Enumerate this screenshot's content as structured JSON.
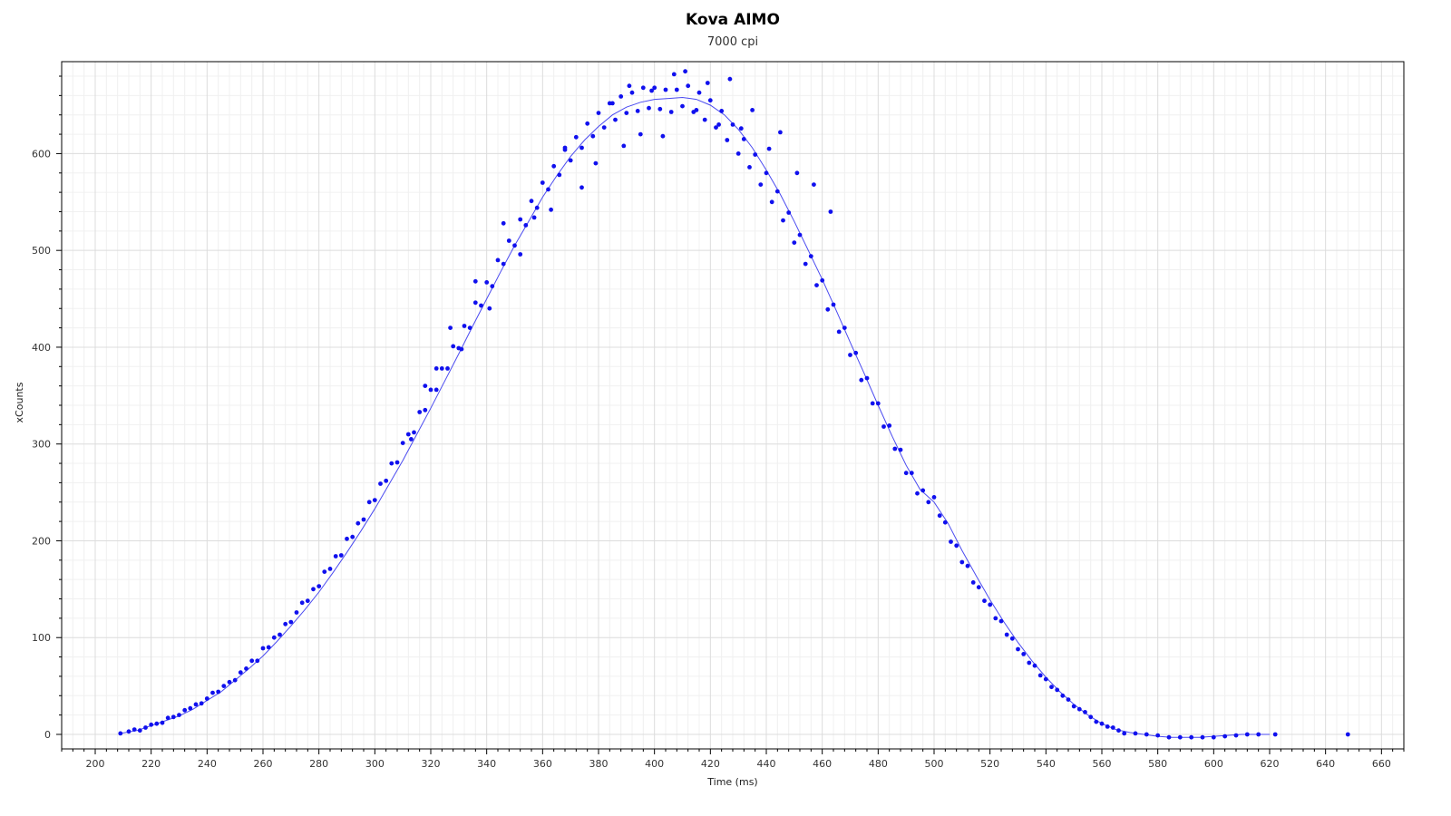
{
  "chart_data": {
    "type": "scatter",
    "title": "Kova AIMO",
    "subtitle": "7000 cpi",
    "xlabel": "Time (ms)",
    "ylabel": "xCounts",
    "xlim": [
      188,
      668
    ],
    "ylim": [
      -15,
      695
    ],
    "xticks": [
      200,
      220,
      240,
      260,
      280,
      300,
      320,
      340,
      360,
      380,
      400,
      420,
      440,
      460,
      480,
      500,
      520,
      540,
      560,
      580,
      600,
      620,
      640,
      660
    ],
    "yticks": [
      0,
      100,
      200,
      300,
      400,
      500,
      600
    ],
    "grid": true,
    "legend": "none",
    "colors": {
      "points": "#1010ee",
      "line": "#4a4af0"
    },
    "series": [
      {
        "type": "scatter",
        "x": [
          209,
          212,
          214,
          216,
          218,
          220,
          222,
          224,
          226,
          228,
          230,
          232,
          234,
          236,
          238,
          240,
          242,
          244,
          246,
          248,
          250,
          252,
          254,
          256,
          258,
          260,
          262,
          264,
          266,
          268,
          270,
          272,
          274,
          276,
          278,
          280,
          282,
          284,
          286,
          288,
          290,
          292,
          294,
          296,
          298,
          300,
          302,
          304,
          306,
          308,
          310,
          312,
          314,
          316,
          318,
          320,
          322,
          324,
          326,
          328,
          330,
          332,
          334,
          336,
          338,
          340,
          342,
          344,
          346,
          348,
          350,
          352,
          354,
          356,
          358,
          360,
          362,
          364,
          366,
          368,
          370,
          372,
          374,
          376,
          378,
          380,
          382,
          384,
          386,
          388,
          390,
          392,
          394,
          396,
          398,
          400,
          402,
          404,
          406,
          408,
          410,
          412,
          414,
          416,
          418,
          420,
          422,
          424,
          426,
          428,
          430,
          432,
          434,
          436,
          438,
          440,
          442,
          444,
          446,
          448,
          450,
          452,
          454,
          456,
          458,
          460,
          462,
          464,
          466,
          468,
          470,
          472,
          474,
          476,
          478,
          480,
          482,
          484,
          486,
          488,
          490,
          492,
          494,
          496,
          498,
          500,
          502,
          504,
          506,
          508,
          510,
          512,
          514,
          516,
          518,
          520,
          522,
          524,
          526,
          528,
          530,
          532,
          534,
          536,
          538,
          540,
          542,
          544,
          546,
          548,
          550,
          552,
          554,
          556,
          558,
          560,
          562,
          564,
          566,
          568,
          572,
          576,
          580,
          584,
          588,
          592,
          596,
          600,
          604,
          608,
          612,
          616,
          622,
          648,
          313,
          318,
          322,
          327,
          331,
          336,
          341,
          346,
          352,
          357,
          363,
          368,
          374,
          379,
          385,
          389,
          391,
          395,
          399,
          403,
          407,
          411,
          415,
          419,
          423,
          427,
          431,
          435,
          441,
          445,
          451,
          457,
          463
        ],
        "y": [
          1,
          3,
          4,
          5,
          7,
          9,
          11,
          13,
          16,
          18,
          21,
          24,
          27,
          30,
          33,
          37,
          41,
          45,
          49,
          54,
          58,
          63,
          68,
          74,
          79,
          85,
          91,
          98,
          104,
          111,
          118,
          125,
          133,
          140,
          148,
          156,
          164,
          172,
          181,
          189,
          198,
          207,
          216,
          226,
          235,
          245,
          255,
          265,
          275,
          285,
          296,
          306,
          317,
          328,
          339,
          350,
          361,
          372,
          383,
          394,
          405,
          416,
          427,
          438,
          449,
          460,
          471,
          482,
          492,
          503,
          513,
          523,
          533,
          543,
          552,
          561,
          570,
          578,
          586,
          594,
          601,
          608,
          615,
          621,
          627,
          632,
          637,
          641,
          645,
          648,
          651,
          653,
          655,
          656,
          657,
          657,
          657,
          656,
          655,
          653,
          660,
          658,
          655,
          652,
          648,
          643,
          638,
          632,
          626,
          619,
          612,
          604,
          596,
          588,
          579,
          570,
          560,
          550,
          540,
          529,
          518,
          507,
          495,
          484,
          472,
          460,
          448,
          436,
          424,
          411,
          399,
          386,
          374,
          361,
          349,
          336,
          324,
          312,
          300,
          288,
          276,
          265,
          254,
          248,
          244,
          240,
          229,
          215,
          203,
          192,
          181,
          170,
          160,
          150,
          141,
          131,
          122,
          114,
          105,
          97,
          90,
          82,
          75,
          69,
          62,
          56,
          50,
          45,
          40,
          35,
          30,
          26,
          22,
          18,
          14,
          11,
          8,
          6,
          4,
          2,
          1,
          0,
          -2,
          -3,
          -3,
          -3,
          -3,
          -3,
          -2,
          -1,
          0,
          0,
          0,
          0,
          305,
          360,
          378,
          420,
          398,
          468,
          440,
          528,
          496,
          534,
          542,
          606,
          565,
          590,
          652,
          608,
          670,
          620,
          665,
          618,
          682,
          685,
          645,
          673,
          630,
          677,
          626,
          645,
          605,
          622,
          580,
          568,
          540
        ],
        "jitter": [
          0,
          0,
          1,
          -1,
          0,
          1,
          0,
          -1,
          1,
          0,
          -1,
          1,
          0,
          1,
          -1,
          0,
          2,
          -1,
          1,
          0,
          -2,
          1,
          0,
          2,
          -3,
          4,
          -1,
          2,
          -1,
          3,
          -2,
          1,
          3,
          -2,
          2,
          -3,
          4,
          -1,
          3,
          -4,
          4,
          -3,
          2,
          -4,
          5,
          -3,
          4,
          -3,
          5,
          -4,
          5,
          4,
          -5,
          5,
          -4,
          6,
          -5,
          6,
          -5,
          7,
          -6,
          6,
          -7,
          8,
          -6,
          7,
          -8,
          8,
          -6,
          7,
          -8,
          9,
          -7,
          8,
          -8,
          9,
          -7,
          9,
          -8,
          10,
          -8,
          9,
          -9,
          10,
          -9,
          10,
          -10,
          11,
          -10,
          11,
          -9,
          10,
          -11,
          12,
          -10,
          11,
          -11,
          10,
          -12,
          13,
          -11,
          12,
          -12,
          11,
          -13,
          12,
          -11,
          12,
          -12,
          11,
          -12,
          11,
          -10,
          11,
          -11,
          10,
          -10,
          11,
          -9,
          10,
          -10,
          9,
          -9,
          10,
          -8,
          9,
          -9,
          8,
          -8,
          9,
          -7,
          8,
          -8,
          7,
          -7,
          6,
          -6,
          7,
          -5,
          6,
          -6,
          5,
          -5,
          4,
          -4,
          5,
          -3,
          4,
          -4,
          3,
          -3,
          4,
          -3,
          2,
          -3,
          3,
          -2,
          3,
          -2,
          2,
          -2,
          1,
          -1,
          2,
          -1,
          1,
          -1,
          1,
          0,
          1,
          -1,
          0,
          1,
          0,
          -1,
          0,
          0,
          1,
          0,
          -1,
          0,
          0,
          1,
          0,
          0,
          0,
          0,
          0,
          0,
          0,
          0,
          0,
          0,
          0,
          0,
          0,
          0,
          0,
          0,
          0,
          0,
          0,
          0,
          0,
          0,
          0,
          0,
          0,
          0,
          0,
          0,
          0,
          0,
          0,
          0,
          0,
          0,
          0,
          0
        ]
      },
      {
        "type": "line",
        "x": [
          209,
          215,
          220,
          225,
          230,
          235,
          240,
          245,
          250,
          255,
          260,
          265,
          270,
          275,
          280,
          285,
          290,
          295,
          300,
          305,
          310,
          315,
          320,
          325,
          330,
          335,
          340,
          345,
          350,
          355,
          360,
          365,
          370,
          375,
          380,
          385,
          390,
          395,
          400,
          405,
          410,
          415,
          420,
          425,
          430,
          435,
          440,
          445,
          450,
          455,
          460,
          465,
          470,
          475,
          480,
          485,
          490,
          495,
          500,
          505,
          510,
          515,
          520,
          525,
          530,
          535,
          540,
          545,
          550,
          555,
          560,
          565,
          570,
          575,
          580,
          585,
          590,
          595,
          600,
          605,
          610,
          615,
          620
        ],
        "y": [
          1,
          4,
          9,
          14,
          19,
          26,
          35,
          44,
          56,
          68,
          81,
          96,
          112,
          129,
          147,
          167,
          188,
          210,
          233,
          258,
          283,
          310,
          337,
          365,
          393,
          422,
          450,
          478,
          505,
          530,
          555,
          577,
          597,
          614,
          628,
          640,
          648,
          653,
          656,
          657,
          658,
          656,
          650,
          640,
          625,
          606,
          583,
          558,
          530,
          500,
          470,
          438,
          405,
          373,
          340,
          308,
          278,
          253,
          240,
          218,
          190,
          164,
          139,
          116,
          95,
          76,
          59,
          44,
          31,
          20,
          11,
          5,
          2,
          0,
          -2,
          -3,
          -3,
          -3,
          -2,
          -1,
          0,
          0,
          0
        ]
      }
    ]
  }
}
